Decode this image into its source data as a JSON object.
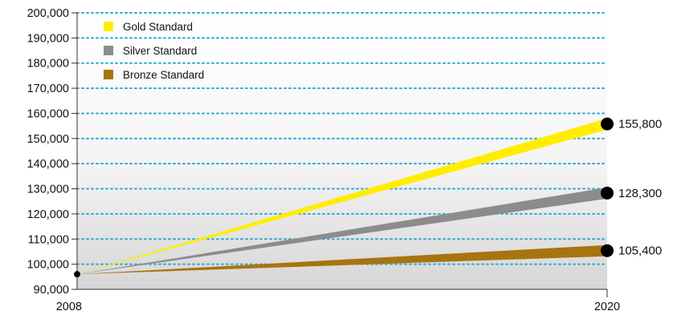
{
  "chart_data": {
    "type": "area",
    "title": "",
    "xlabel": "",
    "ylabel": "",
    "x": [
      2008,
      2020
    ],
    "x_tick_labels": [
      "2008",
      "2020"
    ],
    "ylim": [
      90000,
      200000
    ],
    "y_tick_values": [
      90000,
      100000,
      110000,
      120000,
      130000,
      140000,
      150000,
      160000,
      170000,
      180000,
      190000,
      200000
    ],
    "y_tick_labels": [
      "90,000",
      "100,000",
      "110,000",
      "120,000",
      "130,000",
      "140,000",
      "150,000",
      "160,000",
      "170,000",
      "180,000",
      "190,000",
      "200,000"
    ],
    "grid": "dotted horizontal",
    "legend_position": "top-left",
    "start_value": 96000,
    "series": [
      {
        "name": "Gold Standard",
        "color": "#FFED00",
        "values": [
          96000,
          155800
        ],
        "end_label": "155,800"
      },
      {
        "name": "Silver Standard",
        "color": "#8C8C8C",
        "values": [
          96000,
          128300
        ],
        "end_label": "128,300"
      },
      {
        "name": "Bronze Standard",
        "color": "#A8740F",
        "values": [
          96000,
          105400
        ],
        "end_label": "105,400"
      }
    ],
    "grid_color": "#2FA9D6",
    "marker_color": "#000000"
  }
}
